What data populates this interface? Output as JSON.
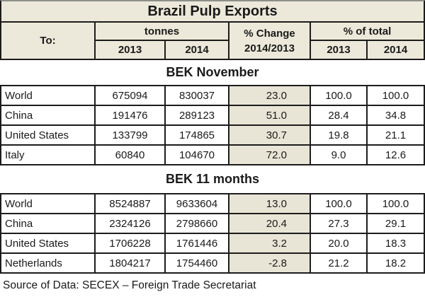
{
  "title": "Brazil Pulp Exports",
  "header": {
    "to": "To:",
    "tonnes": "tonnes",
    "pct_change_line1": "% Change",
    "pct_change_line2": "2014/2013",
    "pct_of_total": "% of total",
    "tonnes_2013": "2013",
    "tonnes_2014": "2014",
    "total_2013": "2013",
    "total_2014": "2014"
  },
  "sections": [
    {
      "label": "BEK November",
      "rows": [
        {
          "dest": "World",
          "tonnes_2013": "675094",
          "tonnes_2014": "830037",
          "pct_change": "23.0",
          "share_2013": "100.0",
          "share_2014": "100.0"
        },
        {
          "dest": "China",
          "tonnes_2013": "191476",
          "tonnes_2014": "289123",
          "pct_change": "51.0",
          "share_2013": "28.4",
          "share_2014": "34.8"
        },
        {
          "dest": "United States",
          "tonnes_2013": "133799",
          "tonnes_2014": "174865",
          "pct_change": "30.7",
          "share_2013": "19.8",
          "share_2014": "21.1"
        },
        {
          "dest": "Italy",
          "tonnes_2013": "60840",
          "tonnes_2014": "104670",
          "pct_change": "72.0",
          "share_2013": "9.0",
          "share_2014": "12.6"
        }
      ]
    },
    {
      "label": "BEK 11 months",
      "rows": [
        {
          "dest": "World",
          "tonnes_2013": "8524887",
          "tonnes_2014": "9633604",
          "pct_change": "13.0",
          "share_2013": "100.0",
          "share_2014": "100.0"
        },
        {
          "dest": "China",
          "tonnes_2013": "2324126",
          "tonnes_2014": "2798660",
          "pct_change": "20.4",
          "share_2013": "27.3",
          "share_2014": "29.1"
        },
        {
          "dest": "United States",
          "tonnes_2013": "1706228",
          "tonnes_2014": "1761446",
          "pct_change": "3.2",
          "share_2013": "20.0",
          "share_2014": "18.3"
        },
        {
          "dest": "Netherlands",
          "tonnes_2013": "1804217",
          "tonnes_2014": "1754460",
          "pct_change": "-2.8",
          "share_2013": "21.2",
          "share_2014": "18.2"
        }
      ]
    }
  ],
  "footer": {
    "source": "Source of Data: SECEX – Foreign Trade Secretariat"
  },
  "colors": {
    "header_bg": "#ece9da",
    "highlight_bg": "#e8e5d6",
    "border": "#1c1c1c",
    "text": "#1a1a1a"
  },
  "chart_data": {
    "type": "table",
    "title": "Brazil Pulp Exports",
    "columns": [
      "To:",
      "tonnes 2013",
      "tonnes 2014",
      "% Change 2014/2013",
      "% of total 2013",
      "% of total 2014"
    ],
    "sections": [
      {
        "name": "BEK November",
        "rows": [
          [
            "World",
            675094,
            830037,
            23.0,
            100.0,
            100.0
          ],
          [
            "China",
            191476,
            289123,
            51.0,
            28.4,
            34.8
          ],
          [
            "United States",
            133799,
            174865,
            30.7,
            19.8,
            21.1
          ],
          [
            "Italy",
            60840,
            104670,
            72.0,
            9.0,
            12.6
          ]
        ]
      },
      {
        "name": "BEK 11 months",
        "rows": [
          [
            "World",
            8524887,
            9633604,
            13.0,
            100.0,
            100.0
          ],
          [
            "China",
            2324126,
            2798660,
            20.4,
            27.3,
            29.1
          ],
          [
            "United States",
            1706228,
            1761446,
            3.2,
            20.0,
            18.3
          ],
          [
            "Netherlands",
            1804217,
            1754460,
            -2.8,
            21.2,
            18.2
          ]
        ]
      }
    ],
    "source": "Source of Data: SECEX – Foreign Trade Secretariat"
  }
}
